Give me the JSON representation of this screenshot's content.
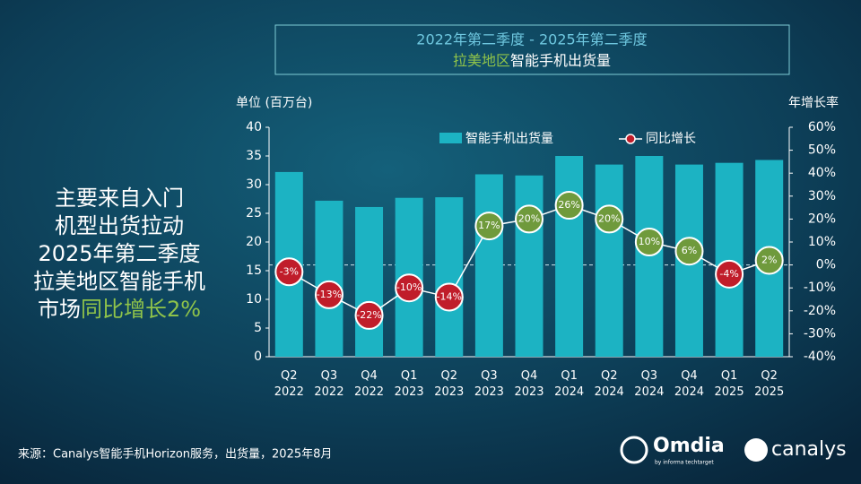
{
  "header": {
    "title_line1": "2022年第二季度 - 2025年第二季度",
    "title_line2": [
      "拉美地区",
      "智能手机出货量"
    ]
  },
  "callout": {
    "lines": [
      "主要来自入门",
      "机型出货拉动",
      "2025年第二季度",
      "拉美地区智能手机"
    ],
    "last_line": [
      "市场",
      "同比增长2%"
    ]
  },
  "chart_data": {
    "type": "bar-line",
    "y_label": "单位 (百万台)",
    "y2_label": "年增长率",
    "categories": [
      [
        "Q2",
        "2022"
      ],
      [
        "Q3",
        "2022"
      ],
      [
        "Q4",
        "2022"
      ],
      [
        "Q1",
        "2023"
      ],
      [
        "Q2",
        "2023"
      ],
      [
        "Q3",
        "2023"
      ],
      [
        "Q4",
        "2023"
      ],
      [
        "Q1",
        "2024"
      ],
      [
        "Q2",
        "2024"
      ],
      [
        "Q3",
        "2024"
      ],
      [
        "Q4",
        "2024"
      ],
      [
        "Q1",
        "2025"
      ],
      [
        "Q2",
        "2025"
      ]
    ],
    "series": [
      {
        "name": "智能手机出货量",
        "color": "#1cb3c3",
        "values": [
          32.2,
          27.2,
          26.1,
          27.7,
          27.8,
          31.8,
          31.6,
          35.0,
          33.5,
          35.0,
          33.5,
          33.8,
          34.3
        ]
      },
      {
        "name": "同比增长",
        "axis": "y2",
        "color": "#ffffff",
        "positive_color": "#6f9a3c",
        "negative_color": "#c01d2a",
        "values": [
          -3,
          -13,
          -22,
          -10,
          -14,
          17,
          20,
          26,
          20,
          10,
          6,
          -4,
          2
        ],
        "value_labels": [
          "-3%",
          "-13%",
          "-22%",
          "-10%",
          "-14%",
          "17%",
          "20%",
          "26%",
          "20%",
          "10%",
          "6%",
          "-4%",
          "2%"
        ]
      }
    ],
    "ylim": [
      0,
      40
    ],
    "yticks": [
      0,
      5,
      10,
      15,
      20,
      25,
      30,
      35,
      40
    ],
    "y2lim": [
      -40,
      60
    ],
    "y2ticks": [
      {
        "value": -40,
        "label": "-40%"
      },
      {
        "value": -30,
        "label": "-30%"
      },
      {
        "value": -20,
        "label": "-20%"
      },
      {
        "value": -10,
        "label": "-10%"
      },
      {
        "value": 0,
        "label": "0%"
      },
      {
        "value": 10,
        "label": "10%"
      },
      {
        "value": 20,
        "label": "20%"
      },
      {
        "value": 30,
        "label": "30%"
      },
      {
        "value": 40,
        "label": "40%"
      },
      {
        "value": 50,
        "label": "50%"
      },
      {
        "value": 60,
        "label": "60%"
      }
    ]
  },
  "footer": {
    "source": "来源：Canalys智能手机Horizon服务，出货量，2025年8月",
    "logo1": "Omdia",
    "logo1_sub": "by informa techtarget",
    "logo2": "canalys"
  }
}
